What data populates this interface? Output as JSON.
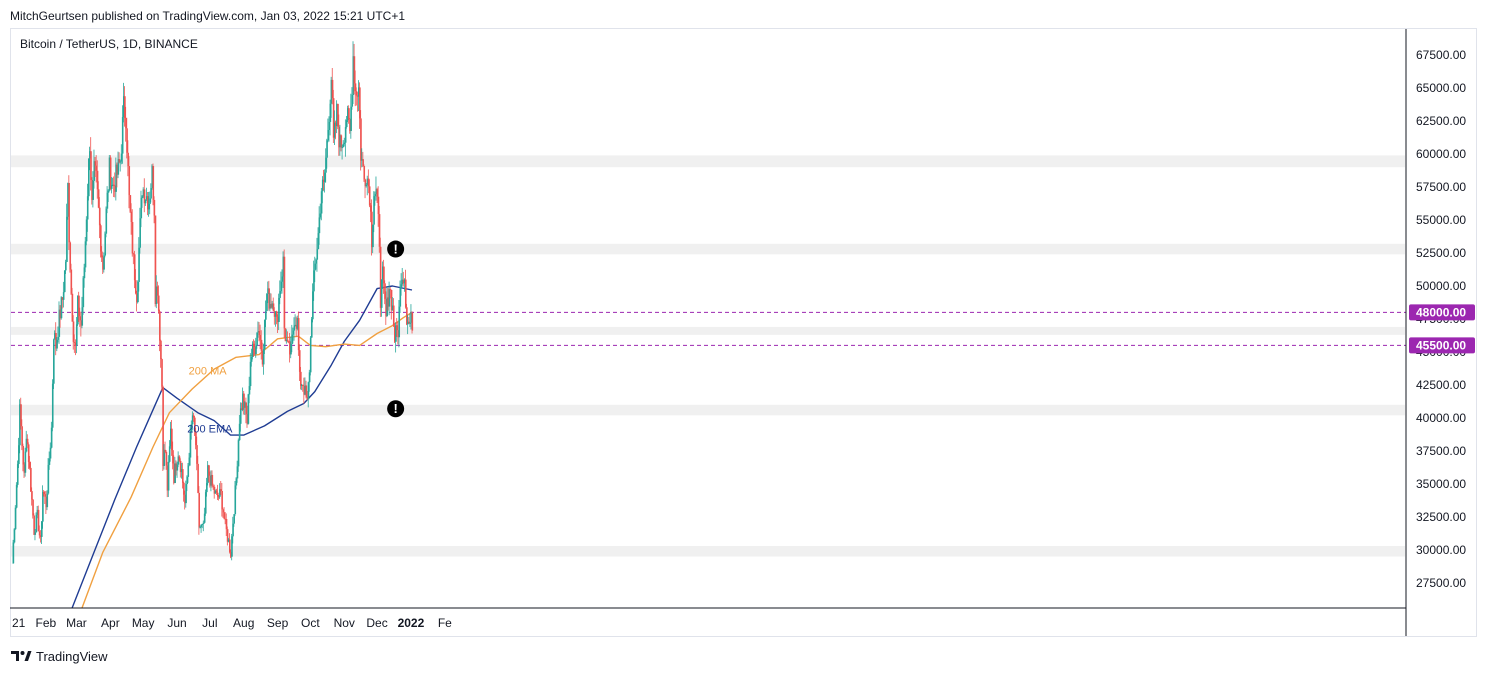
{
  "header": {
    "attribution": "MitchGeurtsen published on TradingView.com, Jan 03, 2022 15:21 UTC+1"
  },
  "footer": {
    "brand": "TradingView"
  },
  "chart_data": {
    "type": "candlestick",
    "title": "Bitcoin / TetherUS, 1D, BINANCE",
    "y_axis": {
      "ylim": [
        25600,
        69400
      ],
      "ticks": [
        27500,
        30000,
        32500,
        35000,
        37500,
        40000,
        42500,
        45000,
        47500,
        50000,
        52500,
        55000,
        57500,
        60000,
        62500,
        65000,
        67500
      ],
      "tick_labels": [
        "27500.00",
        "30000.00",
        "32500.00",
        "35000.00",
        "37500.00",
        "40000.00",
        "42500.00",
        "45000.00",
        "47500.00",
        "50000.00",
        "52500.00",
        "55000.00",
        "57500.00",
        "60000.00",
        "62500.00",
        "65000.00",
        "67500.00"
      ]
    },
    "x_axis": {
      "labels": [
        {
          "date": "2021-01-01",
          "label": "21"
        },
        {
          "date": "2021-02-01",
          "label": "Feb"
        },
        {
          "date": "2021-03-01",
          "label": "Mar"
        },
        {
          "date": "2021-04-01",
          "label": "Apr"
        },
        {
          "date": "2021-05-01",
          "label": "May"
        },
        {
          "date": "2021-06-01",
          "label": "Jun"
        },
        {
          "date": "2021-07-01",
          "label": "Jul"
        },
        {
          "date": "2021-08-01",
          "label": "Aug"
        },
        {
          "date": "2021-09-01",
          "label": "Sep"
        },
        {
          "date": "2021-10-01",
          "label": "Oct"
        },
        {
          "date": "2021-11-01",
          "label": "Nov"
        },
        {
          "date": "2021-12-01",
          "label": "Dec"
        },
        {
          "date": "2022-01-01",
          "label": "2022",
          "bold": true
        },
        {
          "date": "2022-02-01",
          "label": "Fe"
        }
      ]
    },
    "colors": {
      "up": "#26a69a",
      "down": "#ef5350",
      "ema": "#1f3c93",
      "ma": "#f0a040",
      "level_line": "#9c27b0",
      "zone": "#f0f0f0"
    },
    "zones": [
      {
        "from": 29500,
        "to": 30300
      },
      {
        "from": 40200,
        "to": 41000
      },
      {
        "from": 46300,
        "to": 46900
      },
      {
        "from": 52400,
        "to": 53200
      },
      {
        "from": 59000,
        "to": 59900
      }
    ],
    "levels": [
      {
        "value": 48000,
        "label": "48000.00"
      },
      {
        "value": 45500,
        "label": "45500.00"
      }
    ],
    "markers": [
      {
        "date": "2021-12-18",
        "value": 52800,
        "symbol": "!"
      },
      {
        "date": "2021-12-18",
        "value": 40700,
        "symbol": "!"
      }
    ],
    "ohlc_anchors": [
      [
        "2021-01-01",
        29000
      ],
      [
        "2021-01-03",
        32000
      ],
      [
        "2021-01-06",
        36500
      ],
      [
        "2021-01-08",
        40500
      ],
      [
        "2021-01-10",
        38000
      ],
      [
        "2021-01-12",
        35500
      ],
      [
        "2021-01-14",
        39000
      ],
      [
        "2021-01-17",
        36000
      ],
      [
        "2021-01-21",
        31500
      ],
      [
        "2021-01-24",
        32500
      ],
      [
        "2021-01-27",
        30500
      ],
      [
        "2021-01-29",
        34500
      ],
      [
        "2021-02-01",
        33500
      ],
      [
        "2021-02-04",
        37000
      ],
      [
        "2021-02-06",
        39200
      ],
      [
        "2021-02-08",
        46500
      ],
      [
        "2021-02-10",
        45500
      ],
      [
        "2021-02-13",
        47500
      ],
      [
        "2021-02-16",
        49000
      ],
      [
        "2021-02-19",
        52000
      ],
      [
        "2021-02-21",
        57500
      ],
      [
        "2021-02-22",
        54000
      ],
      [
        "2021-02-24",
        49500
      ],
      [
        "2021-02-26",
        46500
      ],
      [
        "2021-02-28",
        45200
      ],
      [
        "2021-03-02",
        48500
      ],
      [
        "2021-03-05",
        47000
      ],
      [
        "2021-03-08",
        51500
      ],
      [
        "2021-03-10",
        55500
      ],
      [
        "2021-03-13",
        61000
      ],
      [
        "2021-03-15",
        56000
      ],
      [
        "2021-03-17",
        58500
      ],
      [
        "2021-03-19",
        58000
      ],
      [
        "2021-03-22",
        54500
      ],
      [
        "2021-03-25",
        51500
      ],
      [
        "2021-03-28",
        55500
      ],
      [
        "2021-03-31",
        58800
      ],
      [
        "2021-04-03",
        57500
      ],
      [
        "2021-04-06",
        58200
      ],
      [
        "2021-04-10",
        59500
      ],
      [
        "2021-04-13",
        63500
      ],
      [
        "2021-04-15",
        63000
      ],
      [
        "2021-04-18",
        56500
      ],
      [
        "2021-04-22",
        51800
      ],
      [
        "2021-04-25",
        49500
      ],
      [
        "2021-04-28",
        54500
      ],
      [
        "2021-04-30",
        57500
      ],
      [
        "2021-05-03",
        57000
      ],
      [
        "2021-05-06",
        56500
      ],
      [
        "2021-05-09",
        58500
      ],
      [
        "2021-05-11",
        56000
      ],
      [
        "2021-05-12",
        49500
      ],
      [
        "2021-05-14",
        50000
      ],
      [
        "2021-05-16",
        46500
      ],
      [
        "2021-05-18",
        42500
      ],
      [
        "2021-05-19",
        37000
      ],
      [
        "2021-05-21",
        37500
      ],
      [
        "2021-05-23",
        34700
      ],
      [
        "2021-05-26",
        39000
      ],
      [
        "2021-05-29",
        35600
      ],
      [
        "2021-06-02",
        37500
      ],
      [
        "2021-06-05",
        36000
      ],
      [
        "2021-06-08",
        33500
      ],
      [
        "2021-06-12",
        37500
      ],
      [
        "2021-06-15",
        40200
      ],
      [
        "2021-06-18",
        38000
      ],
      [
        "2021-06-21",
        31800
      ],
      [
        "2021-06-25",
        31600
      ],
      [
        "2021-06-29",
        36000
      ],
      [
        "2021-07-03",
        34800
      ],
      [
        "2021-07-07",
        34000
      ],
      [
        "2021-07-11",
        34200
      ],
      [
        "2021-07-15",
        31800
      ],
      [
        "2021-07-20",
        29800
      ],
      [
        "2021-07-22",
        32200
      ],
      [
        "2021-07-25",
        35400
      ],
      [
        "2021-07-28",
        40000
      ],
      [
        "2021-07-31",
        41500
      ],
      [
        "2021-08-04",
        39700
      ],
      [
        "2021-08-07",
        44500
      ],
      [
        "2021-08-11",
        45500
      ],
      [
        "2021-08-14",
        47000
      ],
      [
        "2021-08-18",
        44800
      ],
      [
        "2021-08-22",
        49300
      ],
      [
        "2021-08-25",
        48800
      ],
      [
        "2021-08-28",
        48900
      ],
      [
        "2021-08-31",
        47100
      ],
      [
        "2021-09-03",
        50000
      ],
      [
        "2021-09-06",
        51800
      ],
      [
        "2021-09-07",
        46800
      ],
      [
        "2021-09-10",
        45200
      ],
      [
        "2021-09-13",
        44900
      ],
      [
        "2021-09-16",
        47700
      ],
      [
        "2021-09-19",
        47200
      ],
      [
        "2021-09-21",
        42800
      ],
      [
        "2021-09-24",
        42700
      ],
      [
        "2021-09-28",
        41000
      ],
      [
        "2021-09-30",
        43800
      ],
      [
        "2021-10-02",
        48100
      ],
      [
        "2021-10-05",
        51500
      ],
      [
        "2021-10-08",
        53900
      ],
      [
        "2021-10-11",
        57400
      ],
      [
        "2021-10-13",
        57400
      ],
      [
        "2021-10-16",
        60800
      ],
      [
        "2021-10-20",
        65900
      ],
      [
        "2021-10-22",
        60700
      ],
      [
        "2021-10-25",
        63000
      ],
      [
        "2021-10-28",
        60600
      ],
      [
        "2021-10-31",
        61300
      ],
      [
        "2021-11-03",
        62900
      ],
      [
        "2021-11-06",
        61500
      ],
      [
        "2021-11-09",
        67500
      ],
      [
        "2021-11-11",
        64800
      ],
      [
        "2021-11-14",
        65000
      ],
      [
        "2021-11-16",
        60100
      ],
      [
        "2021-11-19",
        58100
      ],
      [
        "2021-11-21",
        58700
      ],
      [
        "2021-11-24",
        57100
      ],
      [
        "2021-11-26",
        53700
      ],
      [
        "2021-11-28",
        57200
      ],
      [
        "2021-11-30",
        57000
      ],
      [
        "2021-12-03",
        53600
      ],
      [
        "2021-12-04",
        49200
      ],
      [
        "2021-12-06",
        50600
      ],
      [
        "2021-12-09",
        47600
      ],
      [
        "2021-12-12",
        50100
      ],
      [
        "2021-12-15",
        48300
      ],
      [
        "2021-12-17",
        46100
      ],
      [
        "2021-12-20",
        46700
      ],
      [
        "2021-12-23",
        51000
      ],
      [
        "2021-12-26",
        50800
      ],
      [
        "2021-12-28",
        47500
      ],
      [
        "2021-12-30",
        47100
      ],
      [
        "2022-01-02",
        47300
      ]
    ],
    "ma200": {
      "name": "200 MA",
      "points": [
        [
          "2021-03-06",
          25600
        ],
        [
          "2021-03-25",
          29800
        ],
        [
          "2021-04-20",
          34000
        ],
        [
          "2021-05-10",
          37800
        ],
        [
          "2021-05-25",
          40400
        ],
        [
          "2021-06-15",
          42200
        ],
        [
          "2021-07-05",
          43700
        ],
        [
          "2021-07-25",
          44600
        ],
        [
          "2021-08-15",
          44800
        ],
        [
          "2021-09-01",
          46000
        ],
        [
          "2021-09-20",
          46200
        ],
        [
          "2021-10-01",
          45500
        ],
        [
          "2021-10-15",
          45400
        ],
        [
          "2021-11-01",
          45600
        ],
        [
          "2021-11-15",
          45500
        ],
        [
          "2021-12-01",
          46400
        ],
        [
          "2021-12-15",
          47000
        ],
        [
          "2021-12-25",
          47600
        ],
        [
          "2022-01-02",
          48000
        ]
      ]
    },
    "ema200": {
      "name": "200 EMA",
      "points": [
        [
          "2021-02-25",
          25600
        ],
        [
          "2021-03-15",
          29400
        ],
        [
          "2021-04-05",
          33800
        ],
        [
          "2021-04-25",
          37800
        ],
        [
          "2021-05-12",
          41000
        ],
        [
          "2021-05-19",
          42300
        ],
        [
          "2021-06-01",
          41500
        ],
        [
          "2021-06-20",
          40400
        ],
        [
          "2021-07-05",
          39800
        ],
        [
          "2021-07-20",
          38700
        ],
        [
          "2021-08-01",
          38700
        ],
        [
          "2021-08-20",
          39400
        ],
        [
          "2021-09-10",
          40500
        ],
        [
          "2021-09-25",
          41100
        ],
        [
          "2021-10-05",
          42000
        ],
        [
          "2021-10-20",
          44000
        ],
        [
          "2021-11-01",
          45800
        ],
        [
          "2021-11-15",
          47400
        ],
        [
          "2021-12-01",
          49800
        ],
        [
          "2021-12-15",
          50000
        ],
        [
          "2022-01-02",
          49700
        ]
      ]
    },
    "annotations": [
      {
        "text": "200 MA",
        "date": "2021-06-29",
        "value": 43300,
        "series": "ma"
      },
      {
        "text": "200 EMA",
        "date": "2021-07-01",
        "value": 38900,
        "series": "ema"
      }
    ]
  }
}
